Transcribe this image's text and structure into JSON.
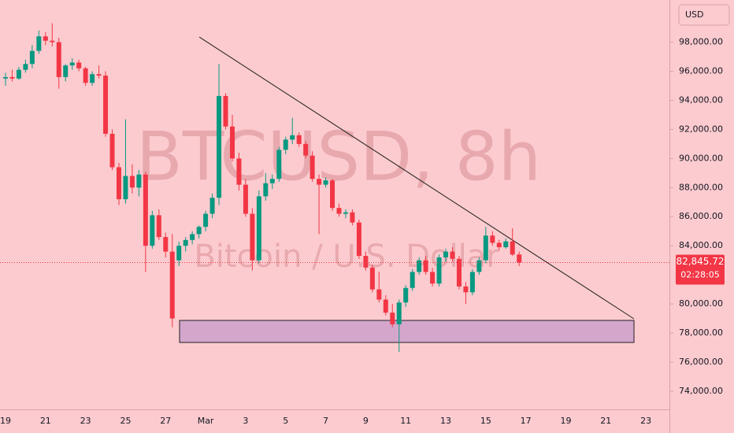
{
  "chart_data": {
    "type": "candlestick",
    "title": "BTCUSD, 8h",
    "subtitle": "Bitcoin / U.S. Dollar",
    "currency": "USD",
    "countdown": "02:28:05",
    "last_price_label": "82,845.72",
    "up_color": "#089981",
    "down_color": "#f23645",
    "categories": [
      "19",
      null,
      null,
      null,
      null,
      null,
      "21",
      null,
      null,
      null,
      null,
      null,
      "23",
      null,
      null,
      null,
      null,
      null,
      "25",
      null,
      null,
      null,
      null,
      null,
      "27",
      null,
      null,
      null,
      null,
      null,
      "Mar",
      null,
      null,
      null,
      null,
      null,
      "3",
      null,
      null,
      null,
      null,
      null,
      "5",
      null,
      null,
      null,
      null,
      null,
      "7",
      null,
      null,
      null,
      null,
      null,
      "9",
      null,
      null,
      null,
      null,
      null,
      "11",
      null,
      null,
      null,
      null,
      null,
      "13",
      null,
      null,
      null,
      null,
      null,
      "15",
      null,
      null,
      null,
      null,
      null,
      "17",
      null,
      null,
      null,
      null,
      null,
      "19",
      null,
      null,
      null,
      null,
      null,
      "21",
      null,
      null,
      null,
      null,
      null,
      "23"
    ],
    "open": [
      95500,
      95600,
      95500,
      96100,
      96500,
      97400,
      98400,
      98100,
      98000,
      95600,
      96400,
      96600,
      96200,
      95200,
      95800,
      95700,
      91700,
      89400,
      87200,
      88800,
      88000,
      88900,
      84000,
      86100,
      84600,
      83600,
      83000,
      84000,
      84400,
      84800,
      85300,
      86200,
      87300,
      94300,
      92200,
      90000,
      88200,
      86200,
      83000,
      87400,
      88300,
      88600,
      90600,
      91300,
      91600,
      91000,
      90200,
      88600,
      88200,
      88500,
      86600,
      86200,
      86300,
      85600,
      83300,
      82500,
      81000,
      80300,
      79400,
      78600,
      80100,
      81100,
      82200,
      83000,
      82200,
      81400,
      83200,
      83600,
      83100,
      81200,
      80800,
      82200,
      83000,
      84700,
      84200,
      83900,
      84300,
      83400,
      null,
      null,
      null,
      null,
      null,
      null,
      null,
      null,
      null,
      null,
      null,
      null,
      null,
      null,
      null,
      null,
      null,
      null,
      null
    ],
    "high": [
      95900,
      96100,
      96300,
      96800,
      97800,
      98800,
      98700,
      99300,
      98300,
      96500,
      96900,
      96800,
      96300,
      96000,
      96400,
      96000,
      92000,
      89700,
      92700,
      89600,
      89200,
      89100,
      86400,
      86500,
      84900,
      84800,
      84300,
      84600,
      85000,
      85400,
      86400,
      87600,
      96500,
      94500,
      93000,
      90400,
      88600,
      86600,
      87800,
      89000,
      88900,
      90800,
      91500,
      92800,
      91800,
      91200,
      90500,
      88900,
      88700,
      88600,
      86900,
      86500,
      86500,
      85800,
      83600,
      82700,
      82200,
      80600,
      80000,
      80300,
      81300,
      82400,
      83200,
      83300,
      82500,
      83400,
      83800,
      83900,
      83300,
      81500,
      82400,
      83200,
      85300,
      85000,
      84400,
      84500,
      85200,
      83600,
      null,
      null,
      null,
      null,
      null,
      null,
      null,
      null,
      null,
      null,
      null,
      null,
      null,
      null,
      null,
      null,
      null,
      null,
      null
    ],
    "low": [
      95000,
      95300,
      95400,
      95900,
      96200,
      97200,
      97800,
      97700,
      94800,
      95300,
      96100,
      96000,
      95000,
      95000,
      95500,
      91500,
      89200,
      86800,
      86900,
      87600,
      87400,
      82200,
      83800,
      84400,
      83200,
      78400,
      82600,
      83600,
      84100,
      84500,
      85000,
      85900,
      86800,
      92000,
      89800,
      87800,
      86000,
      82300,
      82800,
      87100,
      87900,
      88400,
      90300,
      91000,
      90800,
      90000,
      88400,
      84800,
      88000,
      86400,
      86000,
      85900,
      85400,
      83100,
      82300,
      80800,
      80100,
      79200,
      78400,
      76700,
      79800,
      80900,
      82000,
      82000,
      81200,
      81200,
      82900,
      82900,
      81000,
      80000,
      80600,
      82000,
      82800,
      84000,
      83700,
      83800,
      83300,
      82600,
      null,
      null,
      null,
      null,
      null,
      null,
      null,
      null,
      null,
      null,
      null,
      null,
      null,
      null,
      null,
      null,
      null,
      null,
      null
    ],
    "close": [
      95600,
      95500,
      96100,
      96500,
      97400,
      98400,
      98100,
      98000,
      95600,
      96400,
      96600,
      96200,
      95200,
      95800,
      95700,
      91700,
      89400,
      87200,
      88800,
      88000,
      88900,
      84000,
      86100,
      84600,
      83600,
      79000,
      84000,
      84400,
      84800,
      85300,
      86200,
      87300,
      94300,
      92200,
      90000,
      88200,
      86200,
      83000,
      87400,
      88300,
      88600,
      90600,
      91300,
      91600,
      91000,
      90200,
      88600,
      88200,
      88500,
      86600,
      86200,
      86300,
      85600,
      83300,
      82500,
      81000,
      80300,
      79400,
      78600,
      80100,
      81100,
      82200,
      83000,
      82200,
      81400,
      83200,
      83600,
      83100,
      81200,
      80800,
      82200,
      83000,
      84700,
      84200,
      83900,
      84300,
      83400,
      82845.72,
      null,
      null,
      null,
      null,
      null,
      null,
      null,
      null,
      null,
      null,
      null,
      null,
      null,
      null,
      null,
      null,
      null,
      null,
      null
    ],
    "ylim": [
      72750,
      100900
    ],
    "yticks": [
      {
        "value": 74000,
        "label": "74,000.00"
      },
      {
        "value": 76000,
        "label": "76,000.00"
      },
      {
        "value": 78000,
        "label": "78,000.00"
      },
      {
        "value": 80000,
        "label": "80,000.00"
      },
      {
        "value": 84000,
        "label": "84,000.00"
      },
      {
        "value": 86000,
        "label": "86,000.00"
      },
      {
        "value": 88000,
        "label": "88,000.00"
      },
      {
        "value": 90000,
        "label": "90,000.00"
      },
      {
        "value": 92000,
        "label": "92,000.00"
      },
      {
        "value": 94000,
        "label": "94,000.00"
      },
      {
        "value": 96000,
        "label": "96,000.00"
      },
      {
        "value": 98000,
        "label": "98,000.00"
      }
    ]
  }
}
